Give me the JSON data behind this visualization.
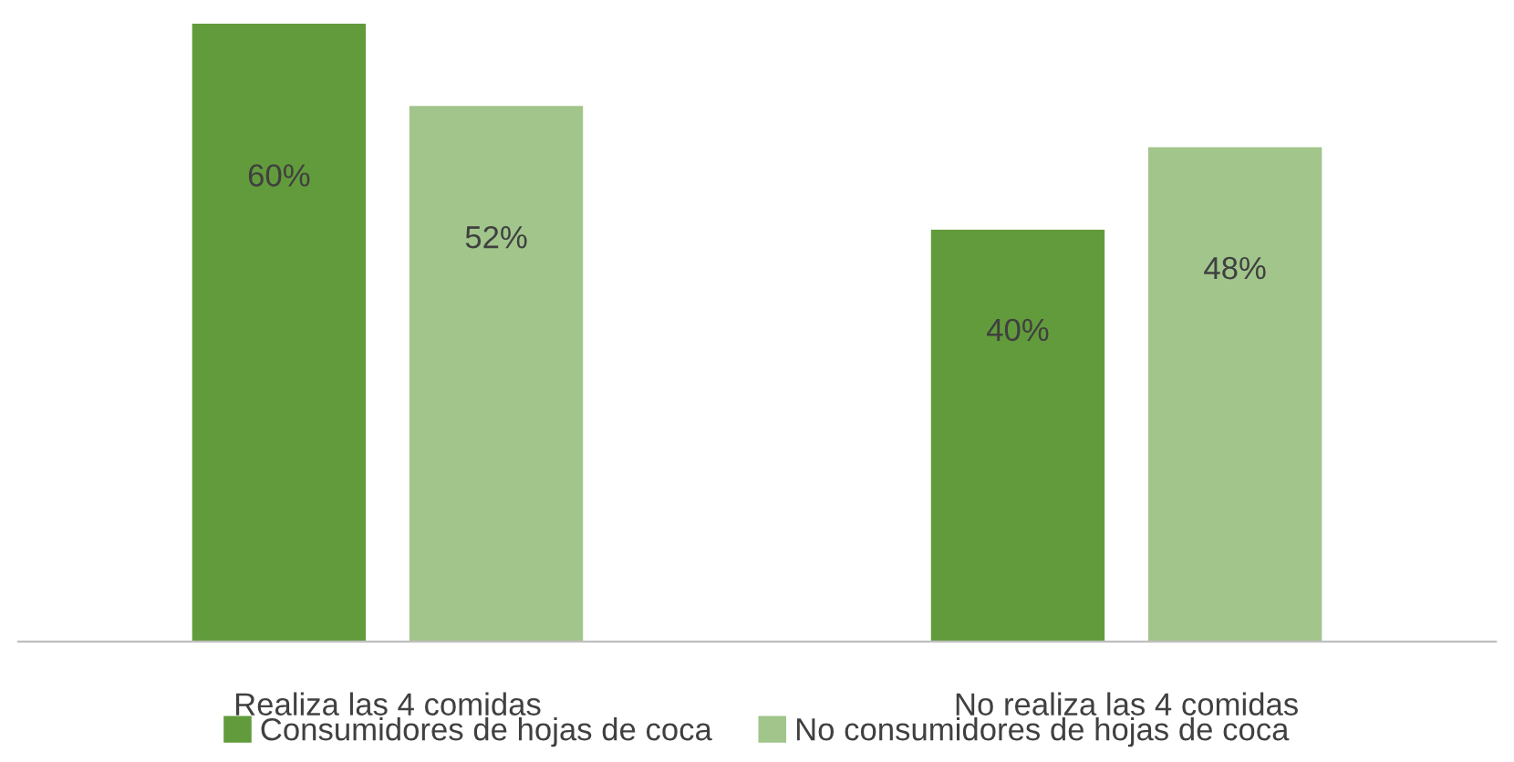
{
  "chart_data": {
    "type": "bar",
    "categories": [
      "Realiza las 4 comidas",
      "No realiza las 4 comidas"
    ],
    "series": [
      {
        "name": "Consumidores de hojas de coca",
        "color": "#629b3c",
        "values": [
          60,
          40
        ],
        "value_labels": [
          "60%",
          "40%"
        ]
      },
      {
        "name": "No consumidores de hojas de coca",
        "color": "#a1c58b",
        "values": [
          52,
          48
        ],
        "value_labels": [
          "52%",
          "48%"
        ]
      }
    ],
    "legend": "bottom",
    "grid": false
  }
}
